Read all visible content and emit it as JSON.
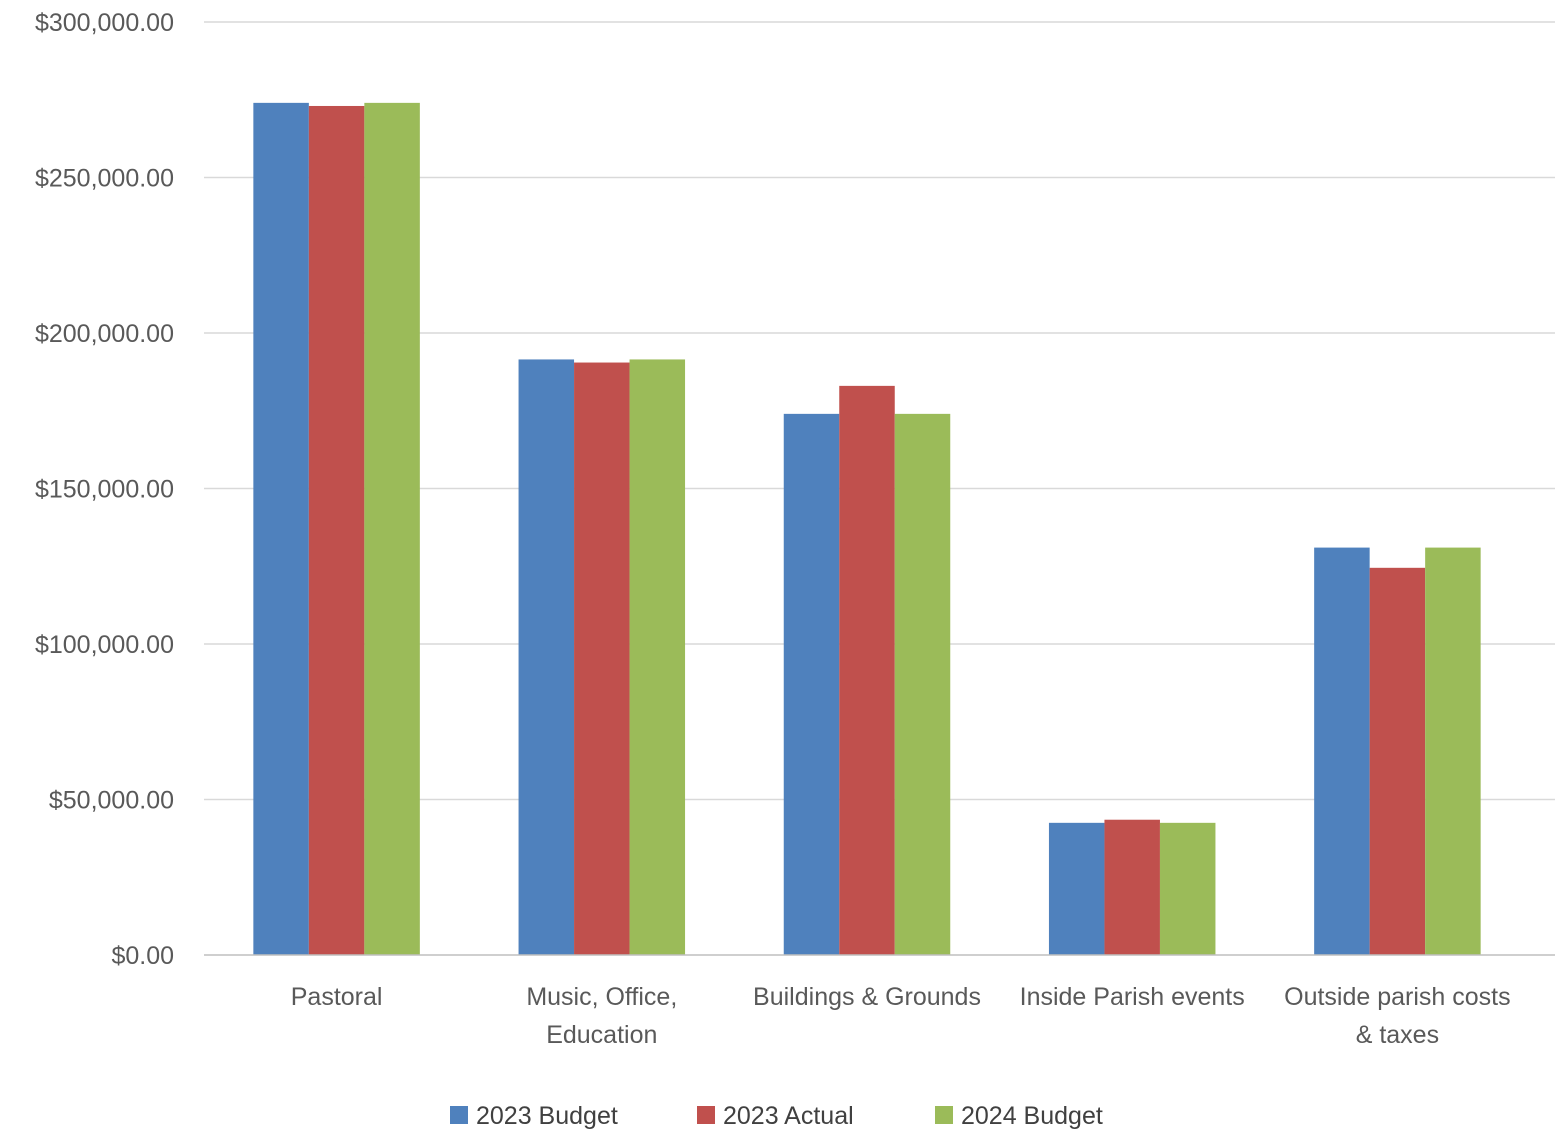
{
  "chart_data": {
    "type": "bar",
    "title": "",
    "xlabel": "",
    "ylabel": "",
    "categories": [
      "Pastoral",
      "Music, Office, Education",
      "Buildings & Grounds",
      "Inside Parish events",
      "Outside parish costs & taxes"
    ],
    "category_label_lines": [
      [
        "Pastoral"
      ],
      [
        "Music, Office,",
        "Education"
      ],
      [
        "Buildings & Grounds"
      ],
      [
        "Inside Parish events"
      ],
      [
        "Outside parish costs",
        "& taxes"
      ]
    ],
    "series": [
      {
        "name": "2023 Budget",
        "color": "#4f81bd",
        "values": [
          274000,
          191500,
          174000,
          42500,
          131000
        ]
      },
      {
        "name": "2023 Actual",
        "color": "#c0504d",
        "values": [
          273000,
          190500,
          183000,
          43500,
          124500
        ]
      },
      {
        "name": "2024 Budget",
        "color": "#9bbb59",
        "values": [
          274000,
          191500,
          174000,
          42500,
          131000
        ]
      }
    ],
    "ylim": [
      0,
      300000
    ],
    "y_ticks": [
      0,
      50000,
      100000,
      150000,
      200000,
      250000,
      300000
    ],
    "y_tick_labels": [
      "$0.00",
      "$50,000.00",
      "$100,000.00",
      "$150,000.00",
      "$200,000.00",
      "$250,000.00",
      "$300,000.00"
    ],
    "grid": true,
    "legend_position": "bottom"
  }
}
